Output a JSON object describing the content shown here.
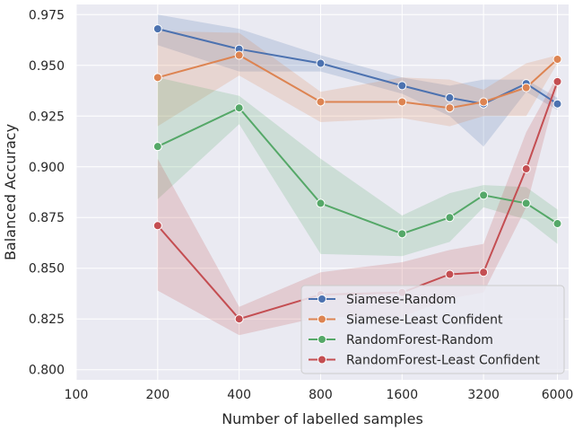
{
  "chart_data": {
    "type": "line",
    "xlabel": "Number of labelled samples",
    "ylabel": "Balanced Accuracy",
    "x_scale": "log2",
    "xlim": [
      100,
      6600
    ],
    "ylim": [
      0.795,
      0.98
    ],
    "xticks": [
      100,
      200,
      400,
      800,
      1600,
      3200,
      6000
    ],
    "xtick_labels": [
      "100",
      "200",
      "400",
      "800",
      "1600",
      "3200",
      "6000"
    ],
    "yticks": [
      0.8,
      0.825,
      0.85,
      0.875,
      0.9,
      0.925,
      0.95,
      0.975
    ],
    "ytick_labels": [
      "0.800",
      "0.825",
      "0.850",
      "0.875",
      "0.900",
      "0.925",
      "0.950",
      "0.975"
    ],
    "grid": true,
    "legend_position": "lower-right",
    "series": [
      {
        "name": "Siamese-Random",
        "color": "#4c72b0",
        "points": [
          {
            "x": 200,
            "y": 0.968,
            "lo": 0.96,
            "hi": 0.975
          },
          {
            "x": 400,
            "y": 0.958,
            "lo": 0.947,
            "hi": 0.968
          },
          {
            "x": 800,
            "y": 0.951,
            "lo": 0.947,
            "hi": 0.955
          },
          {
            "x": 1600,
            "y": 0.94,
            "lo": 0.936,
            "hi": 0.944
          },
          {
            "x": 2400,
            "y": 0.934,
            "lo": 0.925,
            "hi": 0.94
          },
          {
            "x": 3200,
            "y": 0.931,
            "lo": 0.91,
            "hi": 0.943
          },
          {
            "x": 4600,
            "y": 0.941,
            "lo": 0.937,
            "hi": 0.943
          },
          {
            "x": 6000,
            "y": 0.931,
            "lo": 0.928,
            "hi": 0.934
          }
        ]
      },
      {
        "name": "Siamese-Least Confident",
        "color": "#dd8452",
        "points": [
          {
            "x": 200,
            "y": 0.944,
            "lo": 0.92,
            "hi": 0.967
          },
          {
            "x": 400,
            "y": 0.955,
            "lo": 0.945,
            "hi": 0.966
          },
          {
            "x": 800,
            "y": 0.932,
            "lo": 0.922,
            "hi": 0.937
          },
          {
            "x": 1600,
            "y": 0.932,
            "lo": 0.924,
            "hi": 0.944
          },
          {
            "x": 2400,
            "y": 0.929,
            "lo": 0.92,
            "hi": 0.943
          },
          {
            "x": 3200,
            "y": 0.932,
            "lo": 0.925,
            "hi": 0.938
          },
          {
            "x": 4600,
            "y": 0.939,
            "lo": 0.925,
            "hi": 0.951
          },
          {
            "x": 6000,
            "y": 0.953,
            "lo": 0.951,
            "hi": 0.955
          }
        ]
      },
      {
        "name": "RandomForest-Random",
        "color": "#55a868",
        "points": [
          {
            "x": 200,
            "y": 0.91,
            "lo": 0.884,
            "hi": 0.944
          },
          {
            "x": 400,
            "y": 0.929,
            "lo": 0.921,
            "hi": 0.935
          },
          {
            "x": 800,
            "y": 0.882,
            "lo": 0.857,
            "hi": 0.904
          },
          {
            "x": 1600,
            "y": 0.867,
            "lo": 0.856,
            "hi": 0.876
          },
          {
            "x": 2400,
            "y": 0.875,
            "lo": 0.863,
            "hi": 0.887
          },
          {
            "x": 3200,
            "y": 0.886,
            "lo": 0.88,
            "hi": 0.891
          },
          {
            "x": 4600,
            "y": 0.882,
            "lo": 0.874,
            "hi": 0.89
          },
          {
            "x": 6000,
            "y": 0.872,
            "lo": 0.862,
            "hi": 0.879
          }
        ]
      },
      {
        "name": "RandomForest-Least Confident",
        "color": "#c44e52",
        "points": [
          {
            "x": 200,
            "y": 0.871,
            "lo": 0.839,
            "hi": 0.904
          },
          {
            "x": 400,
            "y": 0.825,
            "lo": 0.817,
            "hi": 0.831
          },
          {
            "x": 800,
            "y": 0.837,
            "lo": 0.826,
            "hi": 0.848
          },
          {
            "x": 1600,
            "y": 0.838,
            "lo": 0.826,
            "hi": 0.853
          },
          {
            "x": 2400,
            "y": 0.847,
            "lo": 0.835,
            "hi": 0.859
          },
          {
            "x": 3200,
            "y": 0.848,
            "lo": 0.838,
            "hi": 0.862
          },
          {
            "x": 4600,
            "y": 0.899,
            "lo": 0.88,
            "hi": 0.917
          },
          {
            "x": 6000,
            "y": 0.942,
            "lo": 0.939,
            "hi": 0.945
          }
        ]
      }
    ]
  }
}
